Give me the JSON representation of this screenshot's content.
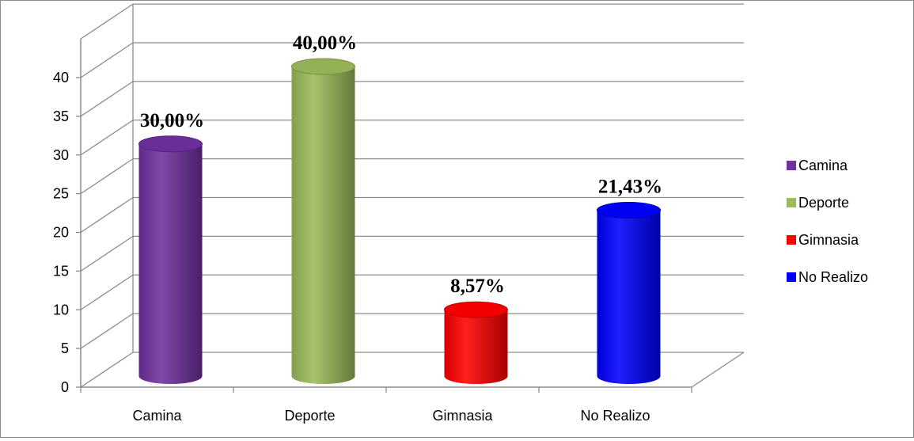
{
  "chart_data": {
    "type": "bar",
    "style": "3d-cylinder",
    "categories": [
      "Camina",
      "Deporte",
      "Gimnasia",
      "No Realizo"
    ],
    "values": [
      30,
      40,
      8.57,
      21.43
    ],
    "data_labels": [
      "30,00%",
      "40,00%",
      "8,57%",
      "21,43%"
    ],
    "colors": [
      "#7030a0",
      "#9bbb59",
      "#ff0000",
      "#0000ff"
    ],
    "ylim": [
      0,
      40
    ],
    "yticks": [
      "0",
      "5",
      "10",
      "15",
      "20",
      "25",
      "30",
      "35",
      "40"
    ],
    "grid": true,
    "legend": {
      "position": "right",
      "entries": [
        "Camina",
        "Deporte",
        "Gimnasia",
        "No Realizo"
      ]
    }
  }
}
